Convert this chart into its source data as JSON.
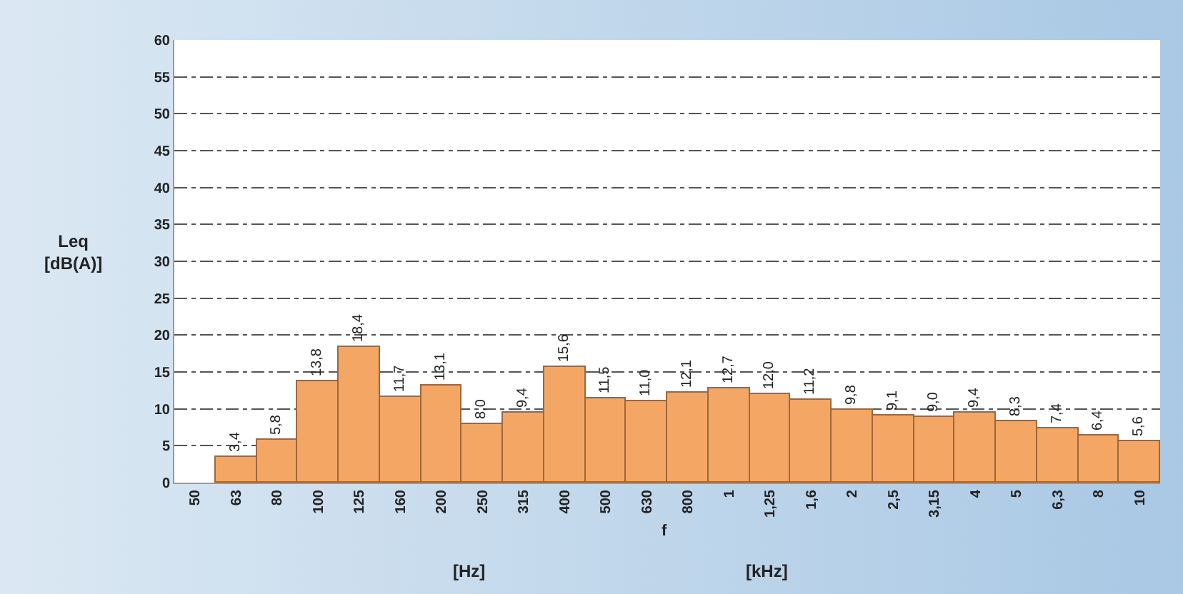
{
  "chart_data": {
    "type": "bar",
    "ylabel": "Leq\n[dB(A)]",
    "xlabel": "f",
    "annotations": [
      "[Hz]",
      "[kHz]"
    ],
    "categories": [
      "50",
      "63",
      "80",
      "100",
      "125",
      "160",
      "200",
      "250",
      "315",
      "400",
      "500",
      "630",
      "800",
      "1",
      "1,25",
      "1,6",
      "2",
      "2,5",
      "3,15",
      "4",
      "5",
      "6,3",
      "8",
      "10"
    ],
    "values": [
      null,
      3.4,
      5.8,
      13.8,
      18.4,
      11.7,
      13.1,
      8.0,
      9.4,
      15.6,
      11.5,
      11.0,
      12.1,
      12.7,
      12.0,
      11.2,
      9.8,
      9.1,
      9.0,
      9.4,
      8.3,
      7.4,
      6.4,
      5.6
    ],
    "value_labels": [
      null,
      "3,4",
      "5,8",
      "13,8",
      "18,4",
      "11,7",
      "13,1",
      "8,0",
      "9,4",
      "15,6",
      "11,5",
      "11,0",
      "12,1",
      "12,7",
      "12,0",
      "11,2",
      "9,8",
      "9,1",
      "9,0",
      "9,4",
      "8,3",
      "7,4",
      "6,4",
      "5,6"
    ],
    "color": "#f4a764",
    "ylim": [
      0,
      60
    ],
    "yticks": [
      0,
      5,
      10,
      15,
      20,
      25,
      30,
      35,
      40,
      45,
      50,
      55,
      60
    ],
    "grid": "y"
  }
}
